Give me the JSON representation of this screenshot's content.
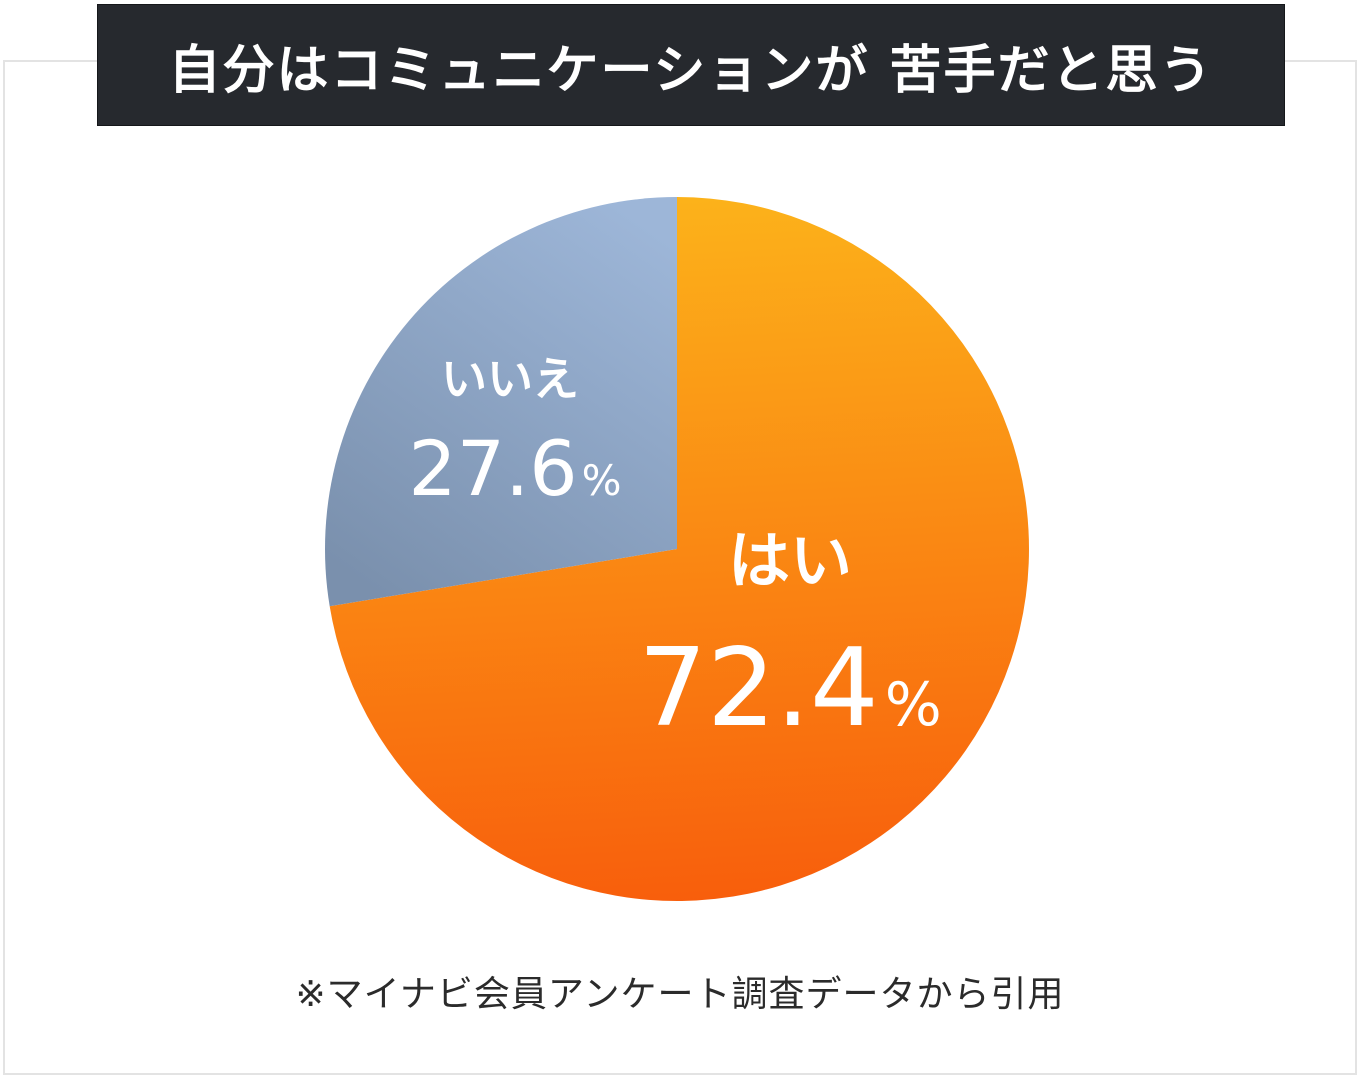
{
  "chart_data": {
    "type": "pie",
    "title": "自分はコミュニケーションが 苦手だと思う",
    "slices": [
      {
        "label": "はい",
        "value": 72.4,
        "display": "72.4",
        "unit": "%",
        "color": "#fb8a12"
      },
      {
        "label": "いいえ",
        "value": 27.6,
        "display": "27.6",
        "unit": "%",
        "color": "#8aa3c2"
      }
    ]
  },
  "footnote": "※マイナビ会員アンケート調査データから引用",
  "colors": {
    "title_bg": "#26292e",
    "yes_gradient_start": "#fcb21a",
    "yes_gradient_end": "#f85e0c",
    "no_gradient_start": "#9db6d8",
    "no_gradient_end": "#7a90ad"
  }
}
